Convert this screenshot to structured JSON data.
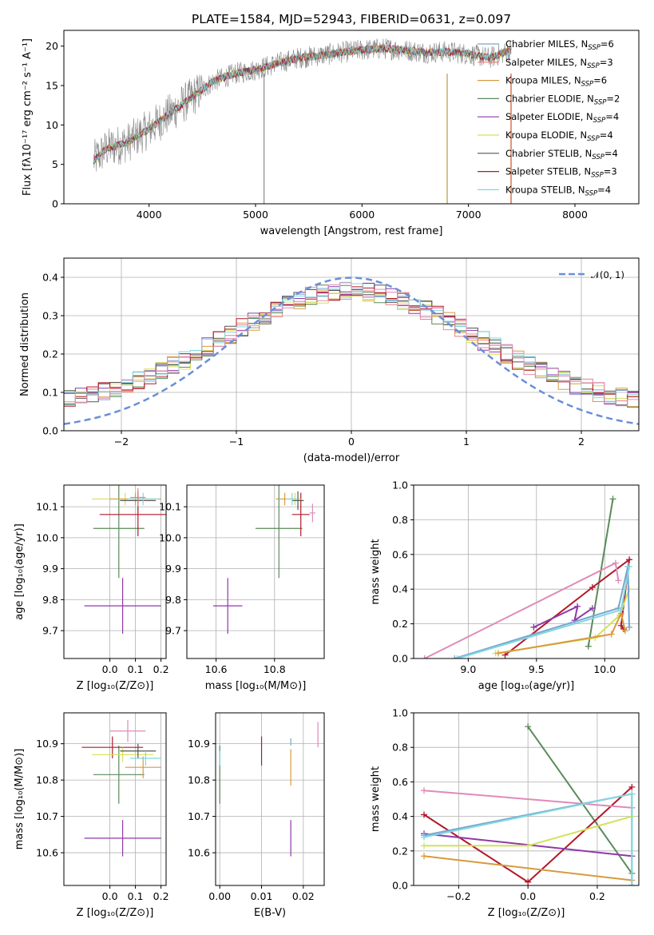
{
  "figure": {
    "title": "PLATE=1584, MJD=52943, FIBERID=0631, z=0.097"
  },
  "chart_data": [
    {
      "id": "spectrum",
      "type": "line",
      "title": "PLATE=1584, MJD=52943, FIBERID=0631, z=0.097",
      "xlabel": "wavelength [Angstrom, rest frame]",
      "ylabel": "Flux [fλ10⁻¹⁷ erg cm⁻² s⁻¹ A⁻¹]",
      "xlim": [
        3200,
        8600
      ],
      "ylim": [
        0,
        22
      ],
      "xticks": [
        4000,
        5000,
        6000,
        7000,
        8000
      ],
      "yticks": [
        0,
        5,
        10,
        15,
        20
      ],
      "grid": false,
      "legend": "right",
      "continuum": {
        "x": [
          3480,
          3600,
          3800,
          4000,
          4200,
          4400,
          4600,
          4800,
          5000,
          5200,
          5400,
          5600,
          5800,
          6000,
          6200,
          6400,
          6600,
          6800,
          7000,
          7200,
          7400
        ],
        "y": [
          5.5,
          7.0,
          7.8,
          9.5,
          11.5,
          13.5,
          15.5,
          16.5,
          17.0,
          17.8,
          18.5,
          18.8,
          19.2,
          19.5,
          19.7,
          19.5,
          19.2,
          19.3,
          19.0,
          18.5,
          19.5
        ]
      },
      "legend_entries": [
        {
          "label": "Chabrier MILES, N",
          "sub": "SSP",
          "suffix": "=6",
          "color": "#7aa6cf"
        },
        {
          "label": "Salpeter MILES, N",
          "sub": "SSP",
          "suffix": "=3",
          "color": "#ef7f7f"
        },
        {
          "label": "Kroupa MILES, N",
          "sub": "SSP",
          "suffix": "=6",
          "color": "#d89a3c"
        },
        {
          "label": "Chabrier ELODIE, N",
          "sub": "SSP",
          "suffix": "=2",
          "color": "#5a8a5a"
        },
        {
          "label": "Salpeter ELODIE, N",
          "sub": "SSP",
          "suffix": "=4",
          "color": "#8e3aa8"
        },
        {
          "label": "Kroupa ELODIE, N",
          "sub": "SSP",
          "suffix": "=4",
          "color": "#d4e157"
        },
        {
          "label": "Chabrier STELIB, N",
          "sub": "SSP",
          "suffix": "=4",
          "color": "#555555"
        },
        {
          "label": "Salpeter STELIB, N",
          "sub": "SSP",
          "suffix": "=3",
          "color": "#b2182b"
        },
        {
          "label": "Kroupa STELIB, N",
          "sub": "SSP",
          "suffix": "=4",
          "color": "#80d8e0"
        }
      ]
    },
    {
      "id": "residuals",
      "type": "line",
      "xlabel": "(data-model)/error",
      "ylabel": "Normed distribution",
      "xlim": [
        -2.5,
        2.5
      ],
      "ylim": [
        0,
        0.45
      ],
      "xticks": [
        -2,
        -1,
        0,
        1,
        2
      ],
      "yticks": [
        0.0,
        0.1,
        0.2,
        0.3,
        0.4
      ],
      "grid": true,
      "legend": "top-right",
      "reference": {
        "label": "𝒩(0, 1)",
        "mean": 0,
        "sigma": 1,
        "color": "#6a8fd8"
      },
      "bin_width": 0.1,
      "series_colors": [
        "#7aa6cf",
        "#ef7f7f",
        "#d89a3c",
        "#5a8a5a",
        "#8e3aa8",
        "#d4e157",
        "#555555",
        "#b2182b",
        "#80d8e0",
        "#e08ab8"
      ]
    },
    {
      "id": "age-vs-Z",
      "type": "scatter",
      "xlabel": "Z [log₁₀(Z/Z⊙)]",
      "ylabel": "age  [log₁₀(age/yr)]",
      "xlim": [
        -0.18,
        0.22
      ],
      "ylim": [
        9.61,
        10.17
      ],
      "xticks": [
        0.0,
        0.1,
        0.2
      ],
      "yticks": [
        9.7,
        9.8,
        9.9,
        10.0,
        10.1
      ],
      "grid": true,
      "points": [
        {
          "x": 0.05,
          "y": 9.78,
          "xerr": 0.15,
          "yerr": 0.09,
          "color": "#8e3aa8"
        },
        {
          "x": 0.035,
          "y": 10.03,
          "xerr": 0.1,
          "yerr": 0.16,
          "color": "#5a8a5a"
        },
        {
          "x": 0.11,
          "y": 10.075,
          "xerr": 0.15,
          "yerr": 0.07,
          "color": "#b2182b"
        },
        {
          "x": 0.06,
          "y": 10.125,
          "xerr": 0.13,
          "yerr": 0.02,
          "color": "#d4e157"
        },
        {
          "x": 0.1,
          "y": 10.125,
          "xerr": 0.1,
          "yerr": 0.02,
          "color": "#d89a3c"
        },
        {
          "x": 0.11,
          "y": 10.12,
          "xerr": 0.07,
          "yerr": 0.03,
          "color": "#555555"
        },
        {
          "x": 0.13,
          "y": 10.125,
          "xerr": 0.06,
          "yerr": 0.02,
          "color": "#80d8e0"
        },
        {
          "x": 0.11,
          "y": 10.13,
          "xerr": 0.03,
          "yerr": 0.03,
          "color": "#ef7f7f"
        }
      ]
    },
    {
      "id": "age-vs-mass",
      "type": "scatter",
      "xlabel": "mass [log₁₀(M/M⊙)]",
      "ylabel": "",
      "xlim": [
        10.5,
        10.97
      ],
      "ylim": [
        9.61,
        10.17
      ],
      "xticks": [
        10.6,
        10.8
      ],
      "xtick_labels": [
        "10.6",
        "10.8"
      ],
      "yticks": [
        9.7,
        9.8,
        9.9,
        10.0,
        10.1
      ],
      "grid": true,
      "points": [
        {
          "x": 10.64,
          "y": 9.78,
          "xerr": 0.05,
          "yerr": 0.09,
          "color": "#8e3aa8"
        },
        {
          "x": 10.815,
          "y": 10.03,
          "xerr": 0.08,
          "yerr": 0.16,
          "color": "#5a8a5a"
        },
        {
          "x": 10.89,
          "y": 10.075,
          "xerr": 0.03,
          "yerr": 0.07,
          "color": "#b2182b"
        },
        {
          "x": 10.87,
          "y": 10.125,
          "xerr": 0.02,
          "yerr": 0.02,
          "color": "#d4e157"
        },
        {
          "x": 10.835,
          "y": 10.125,
          "xerr": 0.03,
          "yerr": 0.02,
          "color": "#d89a3c"
        },
        {
          "x": 10.88,
          "y": 10.12,
          "xerr": 0.02,
          "yerr": 0.03,
          "color": "#555555"
        },
        {
          "x": 10.86,
          "y": 10.125,
          "xerr": 0.02,
          "yerr": 0.02,
          "color": "#80d8e0"
        },
        {
          "x": 10.93,
          "y": 10.08,
          "xerr": 0.01,
          "yerr": 0.03,
          "color": "#e08ab8"
        }
      ]
    },
    {
      "id": "weight-vs-age",
      "type": "line",
      "xlabel": "age  [log₁₀(age/yr)]",
      "ylabel": "mass weight",
      "xlim": [
        8.6,
        10.25
      ],
      "ylim": [
        0,
        1.0
      ],
      "xticks": [
        9.0,
        9.5,
        10.0
      ],
      "yticks": [
        0.0,
        0.2,
        0.4,
        0.6,
        0.8,
        1.0
      ],
      "grid": true,
      "series": [
        {
          "color": "#5a8a5a",
          "x": [
            9.88,
            10.06
          ],
          "y": [
            0.07,
            0.92
          ]
        },
        {
          "color": "#b2182b",
          "x": [
            9.27,
            9.91,
            10.18,
            10.12,
            10.14
          ],
          "y": [
            0.02,
            0.41,
            0.57,
            0.19,
            0.17
          ]
        },
        {
          "color": "#e08ab8",
          "x": [
            8.68,
            10.08,
            10.1
          ],
          "y": [
            0.0,
            0.55,
            0.45
          ]
        },
        {
          "color": "#8e3aa8",
          "x": [
            9.48,
            9.8,
            9.78,
            9.91
          ],
          "y": [
            0.18,
            0.3,
            0.22,
            0.29
          ]
        },
        {
          "color": "#d4e157",
          "x": [
            9.2,
            9.93,
            10.11,
            10.18
          ],
          "y": [
            0.03,
            0.12,
            0.25,
            0.4
          ]
        },
        {
          "color": "#d89a3c",
          "x": [
            9.22,
            10.05,
            10.12,
            10.15
          ],
          "y": [
            0.03,
            0.14,
            0.26,
            0.16
          ]
        },
        {
          "color": "#7aa6cf",
          "x": [
            8.9,
            10.1,
            10.17,
            10.18
          ],
          "y": [
            0.0,
            0.29,
            0.53,
            0.18
          ]
        },
        {
          "color": "#80d8e0",
          "x": [
            8.92,
            10.12,
            10.18
          ],
          "y": [
            0.0,
            0.28,
            0.53
          ]
        }
      ]
    },
    {
      "id": "mass-vs-Z",
      "type": "scatter",
      "xlabel": "Z [log₁₀(Z/Z⊙)]",
      "ylabel": "mass [log₁₀(M/M⊙)]",
      "xlim": [
        -0.18,
        0.22
      ],
      "ylim": [
        10.51,
        10.985
      ],
      "xticks": [
        0.0,
        0.1,
        0.2
      ],
      "yticks": [
        10.6,
        10.7,
        10.8,
        10.9
      ],
      "grid": true,
      "points": [
        {
          "x": 0.05,
          "y": 10.64,
          "xerr": 0.15,
          "yerr": 0.05,
          "color": "#8e3aa8"
        },
        {
          "x": 0.035,
          "y": 10.815,
          "xerr": 0.1,
          "yerr": 0.08,
          "color": "#5a8a5a"
        },
        {
          "x": 0.01,
          "y": 10.89,
          "xerr": 0.12,
          "yerr": 0.03,
          "color": "#b2182b"
        },
        {
          "x": 0.05,
          "y": 10.87,
          "xerr": 0.12,
          "yerr": 0.02,
          "color": "#d4e157"
        },
        {
          "x": 0.13,
          "y": 10.835,
          "xerr": 0.07,
          "yerr": 0.03,
          "color": "#d89a3c"
        },
        {
          "x": 0.11,
          "y": 10.88,
          "xerr": 0.07,
          "yerr": 0.02,
          "color": "#555555"
        },
        {
          "x": 0.14,
          "y": 10.86,
          "xerr": 0.06,
          "yerr": 0.02,
          "color": "#80d8e0"
        },
        {
          "x": 0.07,
          "y": 10.935,
          "xerr": 0.07,
          "yerr": 0.03,
          "color": "#e08ab8"
        }
      ]
    },
    {
      "id": "mass-vs-EBV",
      "type": "scatter",
      "xlabel": "E(B-V)",
      "ylabel": "",
      "xlim": [
        -0.001,
        0.025
      ],
      "ylim": [
        10.51,
        10.985
      ],
      "xticks": [
        0.0,
        0.01,
        0.02
      ],
      "xtick_labels": [
        "0.00",
        "0.01",
        "0.02"
      ],
      "yticks": [
        10.6,
        10.7,
        10.8,
        10.9
      ],
      "grid": true,
      "points": [
        {
          "x": 0.0,
          "y": 10.815,
          "xerr": 0,
          "yerr": 0.08,
          "color": "#5a8a5a"
        },
        {
          "x": 0.0,
          "y": 10.86,
          "xerr": 0,
          "yerr": 0.02,
          "color": "#80d8e0"
        },
        {
          "x": 0.01,
          "y": 10.88,
          "xerr": 0,
          "yerr": 0.04,
          "color": "#b2182b"
        },
        {
          "x": 0.017,
          "y": 10.64,
          "xerr": 0,
          "yerr": 0.05,
          "color": "#8e3aa8"
        },
        {
          "x": 0.017,
          "y": 10.835,
          "xerr": 0,
          "yerr": 0.05,
          "color": "#d89a3c"
        },
        {
          "x": 0.017,
          "y": 10.905,
          "xerr": 0,
          "yerr": 0.01,
          "color": "#7aa6cf"
        },
        {
          "x": 0.0235,
          "y": 10.925,
          "xerr": 0,
          "yerr": 0.035,
          "color": "#e08ab8"
        }
      ]
    },
    {
      "id": "weight-vs-Z",
      "type": "line",
      "xlabel": "Z [log₁₀(Z/Z⊙)]",
      "ylabel": "mass weight",
      "xlim": [
        -0.33,
        0.32
      ],
      "ylim": [
        0,
        1.0
      ],
      "xticks": [
        -0.2,
        0.0,
        0.2
      ],
      "xtick_labels": [
        "−0.2",
        "0.0",
        "0.2"
      ],
      "yticks": [
        0.0,
        0.2,
        0.4,
        0.6,
        0.8,
        1.0
      ],
      "grid": true,
      "series": [
        {
          "color": "#5a8a5a",
          "x": [
            0.0,
            0.3
          ],
          "y": [
            0.92,
            0.07
          ]
        },
        {
          "color": "#b2182b",
          "x": [
            -0.3,
            0.0,
            0.3
          ],
          "y": [
            0.41,
            0.02,
            0.57
          ]
        },
        {
          "color": "#e08ab8",
          "x": [
            -0.3,
            0.3
          ],
          "y": [
            0.55,
            0.45
          ]
        },
        {
          "color": "#8e3aa8",
          "x": [
            -0.3,
            0.3
          ],
          "y": [
            0.3,
            0.17
          ]
        },
        {
          "color": "#d4e157",
          "x": [
            -0.3,
            0.0,
            0.3
          ],
          "y": [
            0.23,
            0.23,
            0.4
          ]
        },
        {
          "color": "#d89a3c",
          "x": [
            -0.3,
            0.3
          ],
          "y": [
            0.17,
            0.03
          ]
        },
        {
          "color": "#7aa6cf",
          "x": [
            -0.3,
            0.3,
            0.3
          ],
          "y": [
            0.29,
            0.53,
            0.0
          ]
        },
        {
          "color": "#80d8e0",
          "x": [
            -0.3,
            0.3,
            0.3
          ],
          "y": [
            0.28,
            0.53,
            0.0
          ]
        }
      ]
    }
  ]
}
